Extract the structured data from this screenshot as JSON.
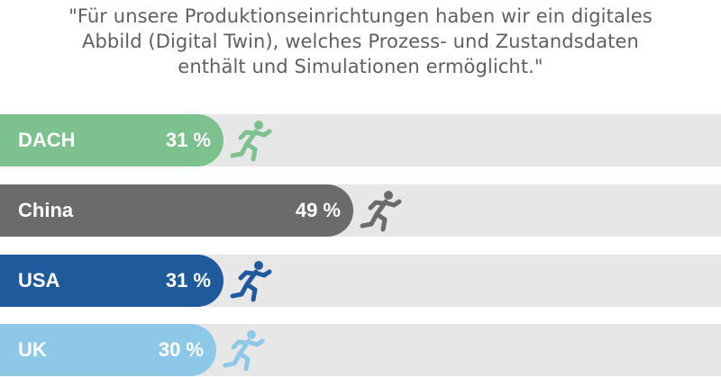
{
  "quote": {
    "lines": [
      "\"Für unsere Produktionseinrichtungen haben wir ein digitales",
      "Abbild (Digital Twin), welches Prozess- und Zustandsdaten",
      "enthält und Simulationen ermöglicht.\""
    ]
  },
  "chart_data": {
    "type": "bar",
    "orientation": "horizontal",
    "categories": [
      "DACH",
      "China",
      "USA",
      "UK"
    ],
    "values": [
      31,
      49,
      31,
      30
    ],
    "value_labels": [
      "31 %",
      "49 %",
      "31 %",
      "30 %"
    ],
    "unit": "%",
    "xlim": [
      0,
      100
    ],
    "colors": [
      "#7dc28e",
      "#6b6b6b",
      "#1e5a9c",
      "#8ec8e8"
    ],
    "track_color": "#e7e7e7",
    "marker_icon": "runner-icon"
  }
}
